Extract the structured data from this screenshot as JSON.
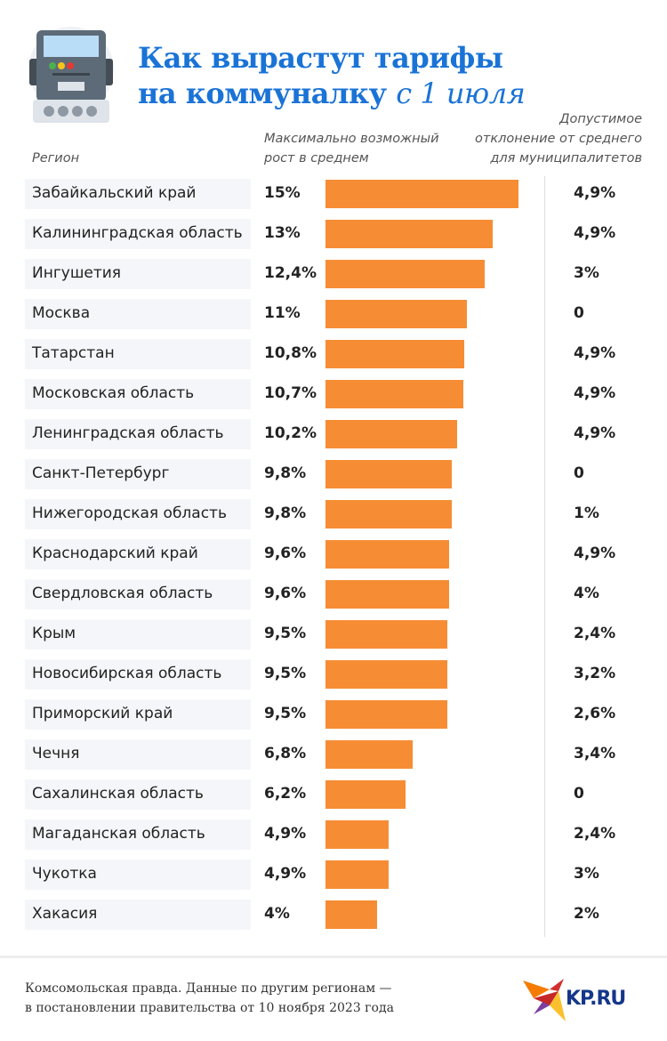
{
  "title": {
    "line1": "Как вырастут тарифы",
    "line2_bold": "на коммуналку",
    "line2_italic": "с 1 июля"
  },
  "headers": {
    "region": "Регион",
    "growth_line1": "Максимально возможный",
    "growth_line2": "рост в среднем",
    "deviation_line1": "Допустимое",
    "deviation_line2": "отклонение от среднего",
    "deviation_line3": "для муниципалитетов"
  },
  "chart_data": {
    "type": "bar",
    "title": "Как вырастут тарифы на коммуналку с 1 июля",
    "xlabel": "Максимально возможный рост в среднем",
    "ylabel": "Регион",
    "unit": "%",
    "xlim": [
      0,
      15
    ],
    "bar_color": "#f68d34",
    "rows": [
      {
        "region": "Забайкальский край",
        "value": 15,
        "label": "15%",
        "deviation": "4,9%"
      },
      {
        "region": "Калининградская область",
        "value": 13,
        "label": "13%",
        "deviation": "4,9%"
      },
      {
        "region": "Ингушетия",
        "value": 12.4,
        "label": "12,4%",
        "deviation": "3%"
      },
      {
        "region": "Москва",
        "value": 11,
        "label": "11%",
        "deviation": "0"
      },
      {
        "region": "Татарстан",
        "value": 10.8,
        "label": "10,8%",
        "deviation": "4,9%"
      },
      {
        "region": "Московская область",
        "value": 10.7,
        "label": "10,7%",
        "deviation": "4,9%"
      },
      {
        "region": "Ленинградская область",
        "value": 10.2,
        "label": "10,2%",
        "deviation": "4,9%"
      },
      {
        "region": "Санкт-Петербург",
        "value": 9.8,
        "label": "9,8%",
        "deviation": "0"
      },
      {
        "region": "Нижегородская область",
        "value": 9.8,
        "label": "9,8%",
        "deviation": "1%"
      },
      {
        "region": "Краснодарский край",
        "value": 9.6,
        "label": "9,6%",
        "deviation": "4,9%"
      },
      {
        "region": "Свердловская область",
        "value": 9.6,
        "label": "9,6%",
        "deviation": "4%"
      },
      {
        "region": "Крым",
        "value": 9.5,
        "label": "9,5%",
        "deviation": "2,4%"
      },
      {
        "region": "Новосибирская область",
        "value": 9.5,
        "label": "9,5%",
        "deviation": "3,2%"
      },
      {
        "region": "Приморский край",
        "value": 9.5,
        "label": "9,5%",
        "deviation": "2,6%"
      },
      {
        "region": "Чечня",
        "value": 6.8,
        "label": "6,8%",
        "deviation": "3,4%"
      },
      {
        "region": "Сахалинская область",
        "value": 6.2,
        "label": "6,2%",
        "deviation": "0"
      },
      {
        "region": "Магаданская область",
        "value": 4.9,
        "label": "4,9%",
        "deviation": "2,4%"
      },
      {
        "region": "Чукотка",
        "value": 4.9,
        "label": "4,9%",
        "deviation": "3%"
      },
      {
        "region": "Хакасия",
        "value": 4,
        "label": "4%",
        "deviation": "2%"
      }
    ]
  },
  "footer": {
    "line1": "Комсомольская правда. Данные по другим регионам —",
    "line2": "в постановлении правительства от 10 ноября 2023 года",
    "logo_text": "KP.RU"
  }
}
